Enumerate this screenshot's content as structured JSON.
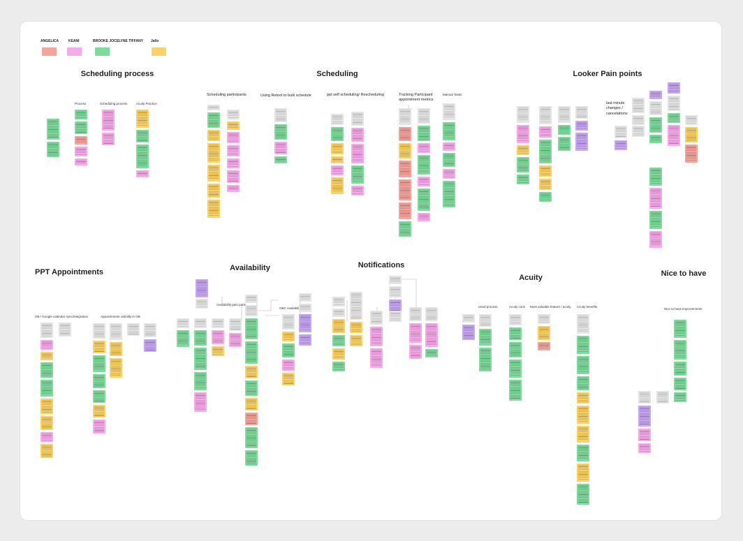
{
  "legend": [
    {
      "name": "ANGELICA",
      "color": "#f5a49c"
    },
    {
      "name": "KEANI",
      "color": "#f7aaea"
    },
    {
      "name": "BROOKE JOCELYNE TIFFANY",
      "color": "#7fdb9c"
    },
    {
      "name": "Jallo",
      "color": "#fbd265"
    }
  ],
  "sections": {
    "scheduling_process": {
      "title": "Scheduling process",
      "columns": [
        "Process",
        "Scheduling process",
        "Acuity Practice"
      ]
    },
    "scheduling": {
      "title": "Scheduling",
      "subheads": [
        "Scheduling participants",
        "Using Retool to bulk schedule",
        "ppt self scheduling/ Rescheduling",
        "Tracking Participant appointment metrics",
        "Manual Tasks"
      ]
    },
    "looker": {
      "title": "Looker Pain points",
      "subheads": [
        "last minute changes / cancelations"
      ]
    },
    "ppt_appointments": {
      "title": "PPT Appointments",
      "subheads": [
        "OB / Google calendar sync/integration",
        "Appointments visibility in OB"
      ]
    },
    "availability": {
      "title": "Availability",
      "subheads": [
        "Availability pain parts",
        "OBC Availability"
      ]
    },
    "notifications": {
      "title": "Notifications"
    },
    "acuity": {
      "title": "Acuity",
      "columns": [
        "Used process",
        "Acuity cons",
        "Most valuable feature / acuity",
        "Acuity benefits"
      ]
    },
    "nice_to_have": {
      "title": "Nice to have",
      "subheads": [
        "Nice to have improvements"
      ]
    }
  },
  "colors": {
    "red": "#f5a49c",
    "pink": "#f7aaea",
    "green": "#7fdb9c",
    "yellow": "#fbd265",
    "purple": "#c7a6f2",
    "gray": "#e4e4e4"
  }
}
